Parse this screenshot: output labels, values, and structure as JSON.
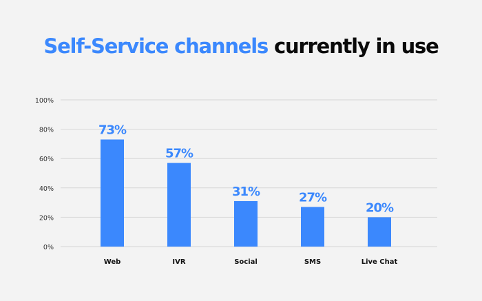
{
  "chart_data": {
    "type": "bar",
    "title_highlight": "Self-Service channels",
    "title_rest": "currently in use",
    "categories": [
      "Web",
      "IVR",
      "Social",
      "SMS",
      "Live Chat"
    ],
    "values": [
      73,
      57,
      31,
      27,
      20
    ],
    "value_labels": [
      "73%",
      "57%",
      "31%",
      "27%",
      "20%"
    ],
    "yticks": [
      0,
      20,
      40,
      60,
      80,
      100
    ],
    "ytick_labels": [
      "0%",
      "20%",
      "40%",
      "60%",
      "80%",
      "100%"
    ],
    "ylim": [
      0,
      100
    ],
    "xlabel": "",
    "ylabel": "",
    "grid": true,
    "bar_color": "#3b88fd"
  }
}
